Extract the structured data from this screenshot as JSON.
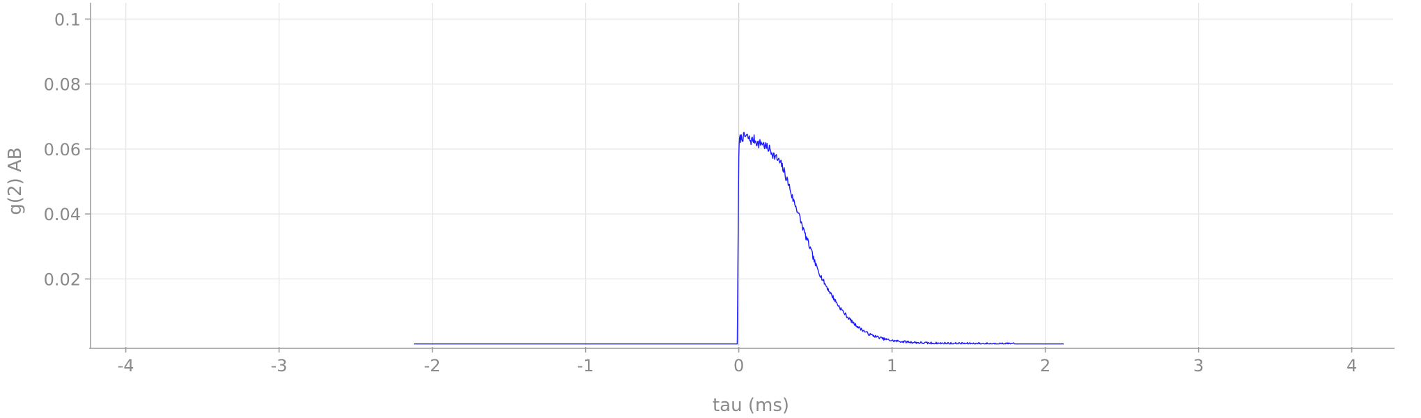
{
  "chart_data": {
    "type": "line",
    "title": "",
    "xlabel": "tau (ms)",
    "ylabel": "g(2) AB",
    "xlim": [
      -4.23,
      4.27
    ],
    "ylim": [
      -0.0005,
      0.105
    ],
    "x_ticks": [
      -4,
      -3,
      -2,
      -1,
      0,
      1,
      2,
      3,
      4
    ],
    "x_tick_labels": [
      "-4",
      "-3",
      "-2",
      "-1",
      "0",
      "1",
      "2",
      "3",
      "4"
    ],
    "y_ticks": [
      0.02,
      0.04,
      0.06,
      0.08,
      0.1
    ],
    "y_tick_labels": [
      "0.02",
      "0.04",
      "0.06",
      "0.08",
      "0.1"
    ],
    "grid": true,
    "legend": "none",
    "series": [
      {
        "color": "#1a1aff",
        "x": [
          -2.12,
          -1.5,
          -1.0,
          -0.5,
          -0.01,
          0.0,
          0.005,
          0.02,
          0.05,
          0.08,
          0.1,
          0.13,
          0.15,
          0.18,
          0.2,
          0.23,
          0.25,
          0.28,
          0.3,
          0.33,
          0.35,
          0.38,
          0.4,
          0.43,
          0.45,
          0.48,
          0.5,
          0.55,
          0.6,
          0.65,
          0.7,
          0.75,
          0.8,
          0.85,
          0.9,
          0.95,
          1.0,
          1.1,
          1.2,
          1.3,
          1.5,
          1.8,
          2.12
        ],
        "y": [
          0.0,
          0.0,
          0.0,
          0.0,
          0.0,
          0.058,
          0.063,
          0.0635,
          0.064,
          0.0625,
          0.063,
          0.0615,
          0.062,
          0.0605,
          0.06,
          0.058,
          0.057,
          0.055,
          0.0525,
          0.0485,
          0.045,
          0.0415,
          0.0385,
          0.034,
          0.0315,
          0.0275,
          0.0245,
          0.0195,
          0.0155,
          0.0118,
          0.0088,
          0.0063,
          0.0045,
          0.003,
          0.0022,
          0.0015,
          0.001,
          0.0006,
          0.0003,
          0.0002,
          0.0001,
          0.0,
          0.0
        ]
      }
    ]
  }
}
